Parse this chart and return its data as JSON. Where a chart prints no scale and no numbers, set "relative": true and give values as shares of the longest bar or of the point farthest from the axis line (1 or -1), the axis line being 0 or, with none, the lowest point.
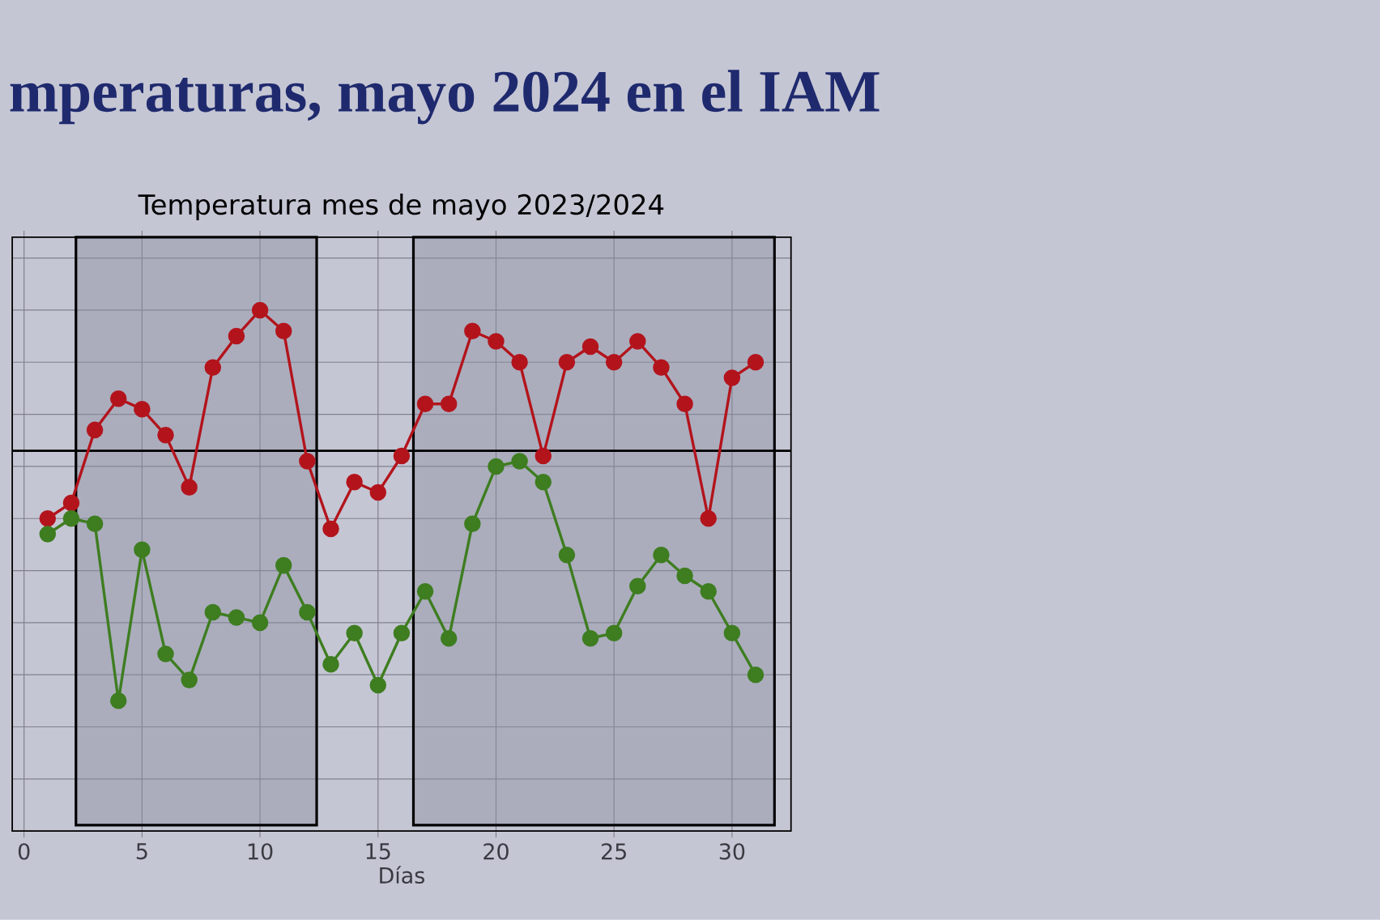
{
  "chart_data": {
    "type": "line",
    "title": "mperaturas, mayo 2024 en el IAM",
    "subtitle": "Temperatura mes de mayo 2023/2024",
    "xlabel": "Días",
    "relative": true,
    "x": [
      1,
      2,
      3,
      4,
      5,
      6,
      7,
      8,
      9,
      10,
      11,
      12,
      13,
      14,
      15,
      16,
      17,
      18,
      19,
      20,
      21,
      22,
      23,
      24,
      25,
      26,
      27,
      28,
      29,
      30,
      31
    ],
    "xlim": [
      -0.5,
      32.5
    ],
    "xticks": [
      0,
      5,
      10,
      15,
      20,
      25,
      30
    ],
    "grid": true,
    "marker": "circle",
    "line_style": "solid",
    "series": [
      {
        "color": "#b3141c",
        "values": [
          0.6,
          0.63,
          0.77,
          0.83,
          0.81,
          0.76,
          0.66,
          0.89,
          0.95,
          1,
          0.96,
          0.71,
          0.58,
          0.67,
          0.65,
          0.72,
          0.82,
          0.82,
          0.96,
          0.94,
          0.9,
          0.72,
          0.9,
          0.93,
          0.9,
          0.94,
          0.89,
          0.82,
          0.6,
          0.87,
          0.9
        ]
      },
      {
        "color": "#3e7d20",
        "values": [
          0.57,
          0.6,
          0.59,
          0.25,
          0.54,
          0.34,
          0.29,
          0.42,
          0.41,
          0.4,
          0.51,
          0.42,
          0.32,
          0.38,
          0.28,
          0.38,
          0.46,
          0.37,
          0.59,
          0.7,
          0.71,
          0.67,
          0.53,
          0.37,
          0.38,
          0.47,
          0.53,
          0.49,
          0.46,
          0.38,
          0.3
        ]
      }
    ],
    "ref_lines": [
      {
        "axis": "y",
        "value": 0.73
      }
    ],
    "bands": [
      {
        "axis": "x",
        "from": 2.2,
        "to": 12.4
      },
      {
        "axis": "x",
        "from": 16.5,
        "to": 31.8
      }
    ]
  }
}
